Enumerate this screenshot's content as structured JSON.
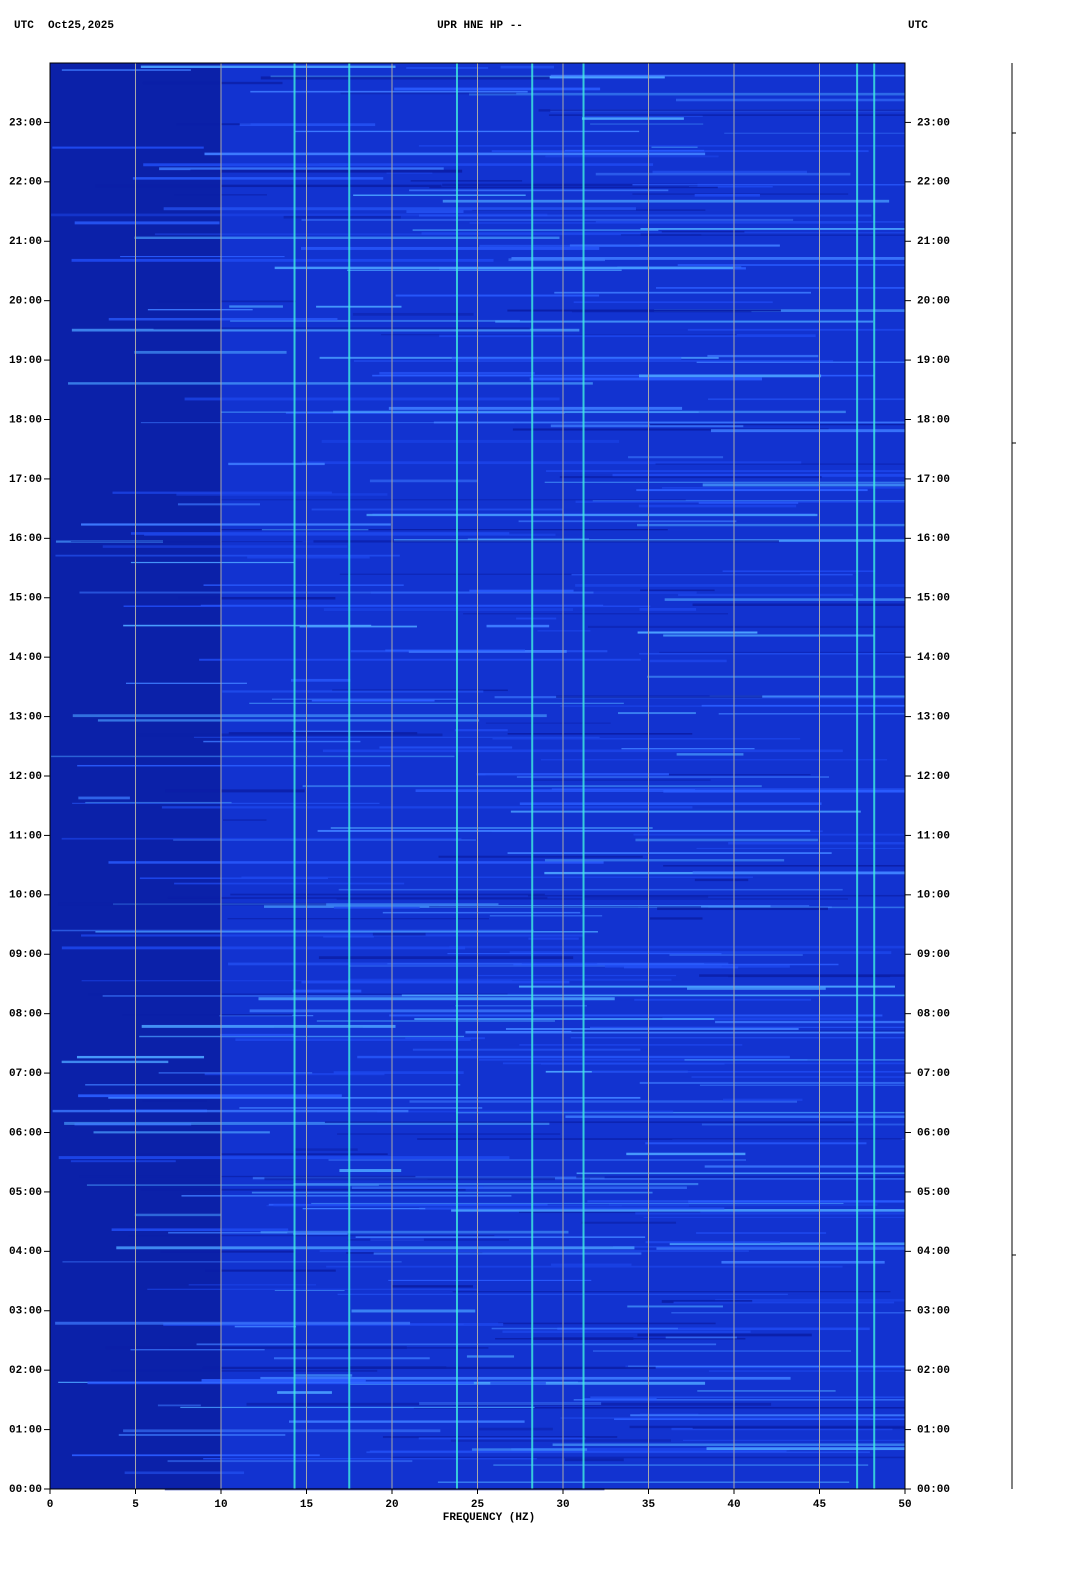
{
  "chart_data": {
    "type": "spectrogram",
    "time_zone_label": "UTC",
    "date": "Oct25,2025",
    "title": "UPR HNE HP --",
    "x_label": "FREQUENCY (HZ)",
    "xlim": [
      0,
      50
    ],
    "xticks": [
      0,
      5,
      10,
      15,
      20,
      25,
      30,
      35,
      40,
      45,
      50
    ],
    "ylim": [
      0,
      24
    ],
    "yticks": [
      {
        "value": 0,
        "label": "00:00"
      },
      {
        "value": 1,
        "label": "01:00"
      },
      {
        "value": 2,
        "label": "02:00"
      },
      {
        "value": 3,
        "label": "03:00"
      },
      {
        "value": 4,
        "label": "04:00"
      },
      {
        "value": 5,
        "label": "05:00"
      },
      {
        "value": 6,
        "label": "06:00"
      },
      {
        "value": 7,
        "label": "07:00"
      },
      {
        "value": 8,
        "label": "08:00"
      },
      {
        "value": 9,
        "label": "09:00"
      },
      {
        "value": 10,
        "label": "10:00"
      },
      {
        "value": 11,
        "label": "11:00"
      },
      {
        "value": 12,
        "label": "12:00"
      },
      {
        "value": 13,
        "label": "13:00"
      },
      {
        "value": 14,
        "label": "14:00"
      },
      {
        "value": 15,
        "label": "15:00"
      },
      {
        "value": 16,
        "label": "16:00"
      },
      {
        "value": 17,
        "label": "17:00"
      },
      {
        "value": 18,
        "label": "18:00"
      },
      {
        "value": 19,
        "label": "19:00"
      },
      {
        "value": 20,
        "label": "20:00"
      },
      {
        "value": 21,
        "label": "21:00"
      },
      {
        "value": 22,
        "label": "22:00"
      },
      {
        "value": 23,
        "label": "23:00"
      }
    ],
    "peak_frequencies": [
      14.3,
      17.5,
      23.8,
      28.2,
      31.2,
      47.2,
      48.2
    ],
    "peak_color": "#40f0e0",
    "background_color": "#1233d0",
    "grid": true,
    "grid_color": "#a8a8a8"
  }
}
